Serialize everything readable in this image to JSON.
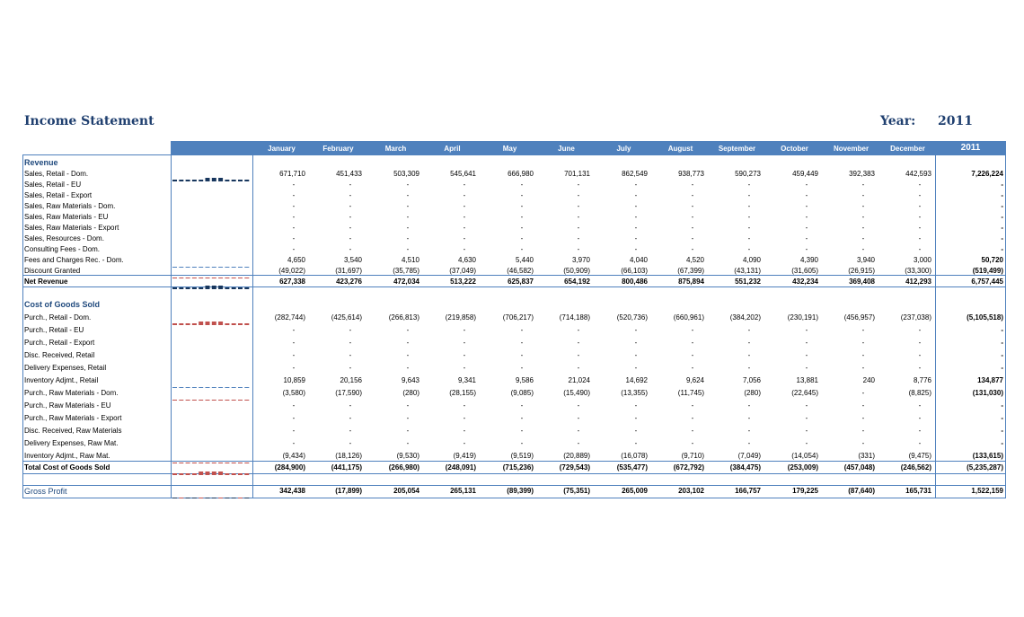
{
  "title": "Income Statement",
  "year_label": "Year:",
  "year": "2011",
  "months": [
    "January",
    "February",
    "March",
    "April",
    "May",
    "June",
    "July",
    "August",
    "September",
    "October",
    "November",
    "December"
  ],
  "total_header": "2011",
  "revenue_title": "Revenue",
  "cogs_title": "Cost of Goods Sold",
  "colors": {
    "header": "#4f81bd",
    "section_title": "#1f497d",
    "spark_blue": "#17365d",
    "spark_red": "#c0504d"
  },
  "rows": [
    {
      "label": "Sales, Retail - Dom.",
      "values": [
        "671,710",
        "451,433",
        "503,309",
        "545,641",
        "666,980",
        "701,131",
        "862,549",
        "938,773",
        "590,273",
        "459,449",
        "392,383",
        "442,593"
      ],
      "total": "7,226,224",
      "spark": "blue"
    },
    {
      "label": "Sales, Retail - EU",
      "values": [
        "-",
        "-",
        "-",
        "-",
        "-",
        "-",
        "-",
        "-",
        "-",
        "-",
        "-",
        "-"
      ],
      "total": "-"
    },
    {
      "label": "Sales, Retail - Export",
      "values": [
        "-",
        "-",
        "-",
        "-",
        "-",
        "-",
        "-",
        "-",
        "-",
        "-",
        "-",
        "-"
      ],
      "total": "-"
    },
    {
      "label": "Sales, Raw Materials - Dom.",
      "values": [
        "-",
        "-",
        "-",
        "-",
        "-",
        "-",
        "-",
        "-",
        "-",
        "-",
        "-",
        "-"
      ],
      "total": "-"
    },
    {
      "label": "Sales, Raw Materials - EU",
      "values": [
        "-",
        "-",
        "-",
        "-",
        "-",
        "-",
        "-",
        "-",
        "-",
        "-",
        "-",
        "-"
      ],
      "total": "-"
    },
    {
      "label": "Sales, Raw Materials - Export",
      "values": [
        "-",
        "-",
        "-",
        "-",
        "-",
        "-",
        "-",
        "-",
        "-",
        "-",
        "-",
        "-"
      ],
      "total": "-"
    },
    {
      "label": "Sales, Resources - Dom.",
      "values": [
        "-",
        "-",
        "-",
        "-",
        "-",
        "-",
        "-",
        "-",
        "-",
        "-",
        "-",
        "-"
      ],
      "total": "-"
    },
    {
      "label": "Consulting Fees - Dom.",
      "values": [
        "-",
        "-",
        "-",
        "-",
        "-",
        "-",
        "-",
        "-",
        "-",
        "-",
        "-",
        "-"
      ],
      "total": "-"
    },
    {
      "label": "Fees and Charges Rec. - Dom.",
      "values": [
        "4,650",
        "3,540",
        "4,510",
        "4,630",
        "5,440",
        "3,970",
        "4,040",
        "4,520",
        "4,090",
        "4,390",
        "3,940",
        "3,000"
      ],
      "total": "50,720",
      "spark": "thin-blue"
    },
    {
      "label": "Discount Granted",
      "values": [
        "(49,022)",
        "(31,697)",
        "(35,785)",
        "(37,049)",
        "(46,582)",
        "(50,909)",
        "(66,103)",
        "(67,399)",
        "(43,131)",
        "(31,605)",
        "(26,915)",
        "(33,300)"
      ],
      "total": "(519,499)",
      "spark": "thin-red"
    },
    {
      "label": "Net Revenue",
      "values": [
        "627,338",
        "423,276",
        "472,034",
        "513,222",
        "625,837",
        "654,192",
        "800,486",
        "875,894",
        "551,232",
        "432,234",
        "369,408",
        "412,293"
      ],
      "total": "6,757,445",
      "spark": "blue",
      "bold": true
    },
    {
      "label": "Purch., Retail - Dom.",
      "values": [
        "(282,744)",
        "(425,614)",
        "(266,813)",
        "(219,858)",
        "(706,217)",
        "(714,188)",
        "(520,736)",
        "(660,961)",
        "(384,202)",
        "(230,191)",
        "(456,957)",
        "(237,038)"
      ],
      "total": "(5,105,518)",
      "spark": "red"
    },
    {
      "label": "Purch., Retail - EU",
      "values": [
        "-",
        "-",
        "-",
        "-",
        "-",
        "-",
        "-",
        "-",
        "-",
        "-",
        "-",
        "-"
      ],
      "total": "-"
    },
    {
      "label": "Purch., Retail - Export",
      "values": [
        "-",
        "-",
        "-",
        "-",
        "-",
        "-",
        "-",
        "-",
        "-",
        "-",
        "-",
        "-"
      ],
      "total": "-"
    },
    {
      "label": "Disc. Received, Retail",
      "values": [
        "-",
        "-",
        "-",
        "-",
        "-",
        "-",
        "-",
        "-",
        "-",
        "-",
        "-",
        "-"
      ],
      "total": "-"
    },
    {
      "label": "Delivery Expenses, Retail",
      "values": [
        "-",
        "-",
        "-",
        "-",
        "-",
        "-",
        "-",
        "-",
        "-",
        "-",
        "-",
        "-"
      ],
      "total": "-"
    },
    {
      "label": "Inventory Adjmt., Retail",
      "values": [
        "10,859",
        "20,156",
        "9,643",
        "9,341",
        "9,586",
        "21,024",
        "14,692",
        "9,624",
        "7,056",
        "13,881",
        "240",
        "8,776"
      ],
      "total": "134,877",
      "spark": "thin-blue"
    },
    {
      "label": "Purch., Raw Materials - Dom.",
      "values": [
        "(3,580)",
        "(17,590)",
        "(280)",
        "(28,155)",
        "(9,085)",
        "(15,490)",
        "(13,355)",
        "(11,745)",
        "(280)",
        "(22,645)",
        "-",
        "(8,825)"
      ],
      "total": "(131,030)",
      "spark": "thin-red"
    },
    {
      "label": "Purch., Raw Materials - EU",
      "values": [
        "-",
        "-",
        "-",
        "-",
        "-",
        "-",
        "-",
        "-",
        "-",
        "-",
        "-",
        "-"
      ],
      "total": "-"
    },
    {
      "label": "Purch., Raw Materials - Export",
      "values": [
        "-",
        "-",
        "-",
        "-",
        "-",
        "-",
        "-",
        "-",
        "-",
        "-",
        "-",
        "-"
      ],
      "total": "-"
    },
    {
      "label": "Disc. Received, Raw Materials",
      "values": [
        "-",
        "-",
        "-",
        "-",
        "-",
        "-",
        "-",
        "-",
        "-",
        "-",
        "-",
        "-"
      ],
      "total": "-"
    },
    {
      "label": "Delivery Expenses, Raw Mat.",
      "values": [
        "-",
        "-",
        "-",
        "-",
        "-",
        "-",
        "-",
        "-",
        "-",
        "-",
        "-",
        "-"
      ],
      "total": "-"
    },
    {
      "label": "Inventory Adjmt., Raw Mat.",
      "values": [
        "(9,434)",
        "(18,126)",
        "(9,530)",
        "(9,419)",
        "(9,519)",
        "(20,889)",
        "(16,078)",
        "(9,710)",
        "(7,049)",
        "(14,054)",
        "(331)",
        "(9,475)"
      ],
      "total": "(133,615)",
      "spark": "thin-red"
    },
    {
      "label": "Total Cost of Goods Sold",
      "values": [
        "(284,900)",
        "(441,175)",
        "(266,980)",
        "(248,091)",
        "(715,236)",
        "(729,543)",
        "(535,477)",
        "(672,792)",
        "(384,475)",
        "(253,009)",
        "(457,048)",
        "(246,562)"
      ],
      "total": "(5,235,287)",
      "spark": "red",
      "bold": true
    },
    {
      "label": "Gross Profit",
      "values": [
        "342,438",
        "(17,899)",
        "205,054",
        "265,131",
        "(89,399)",
        "(75,351)",
        "265,009",
        "203,102",
        "166,757",
        "179,225",
        "(87,640)",
        "165,731"
      ],
      "total": "1,522,159",
      "spark": "mixed",
      "bold": true,
      "section_style": true
    }
  ]
}
